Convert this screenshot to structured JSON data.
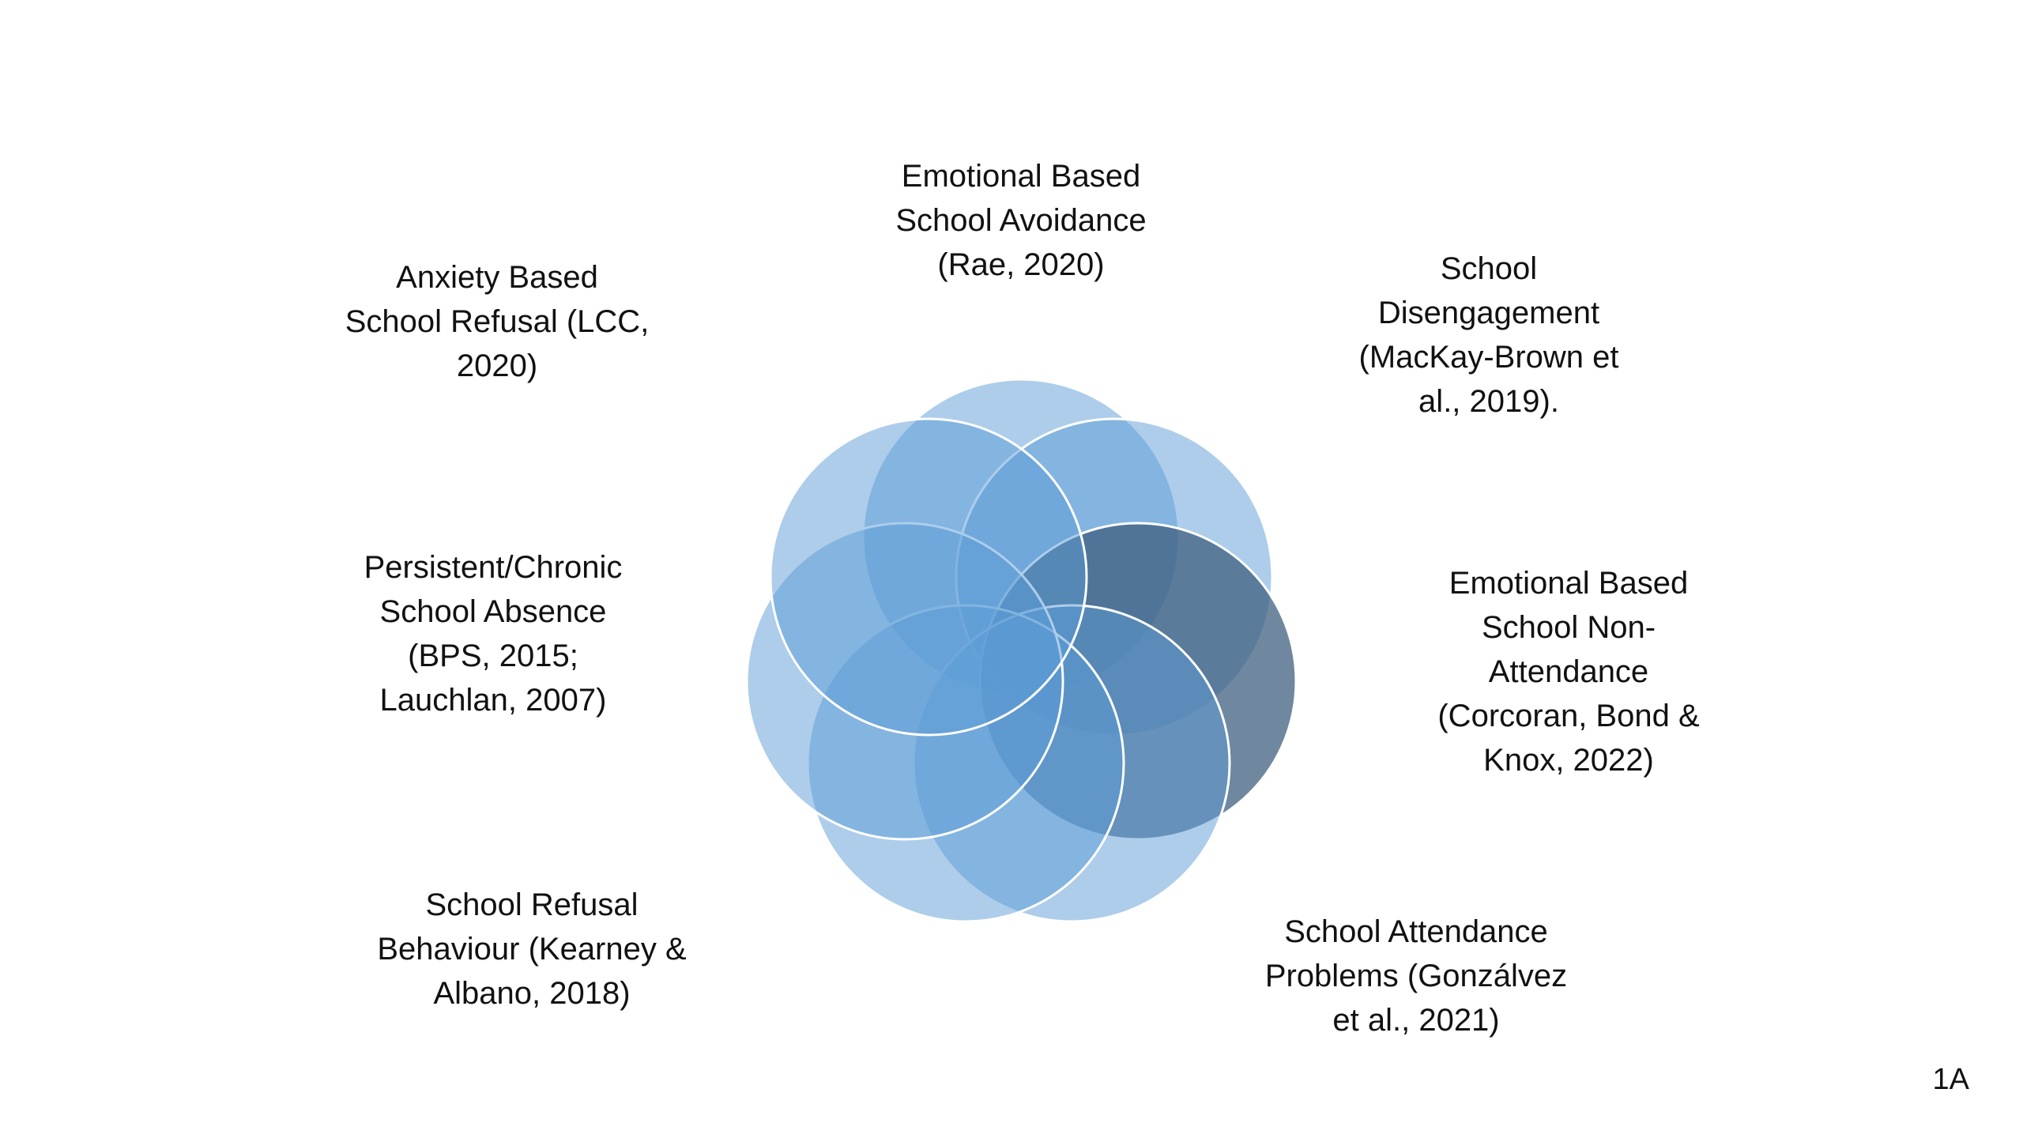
{
  "diagram": {
    "type": "overlapping-circles",
    "circles": [
      {
        "label_lines": [
          "Emotional Based",
          "School Avoidance",
          "(Rae, 2020)"
        ],
        "fill": "#5b9bd5",
        "opacity": 0.5
      },
      {
        "label_lines": [
          "School",
          "Disengagement",
          "(MacKay-Brown et",
          "al., 2019)."
        ],
        "fill": "#5b9bd5",
        "opacity": 0.5
      },
      {
        "label_lines": [
          "Emotional Based",
          "School Non-",
          "Attendance",
          "(Corcoran, Bond &",
          "Knox, 2022)"
        ],
        "fill": "#3f5f7f",
        "opacity": 0.75
      },
      {
        "label_lines": [
          "School Attendance",
          "Problems (Gonzálvez",
          "et al., 2021)"
        ],
        "fill": "#5b9bd5",
        "opacity": 0.5
      },
      {
        "label_lines": [
          "School Refusal",
          "Behaviour (Kearney &",
          "Albano, 2018)"
        ],
        "fill": "#5b9bd5",
        "opacity": 0.5
      },
      {
        "label_lines": [
          "Persistent/Chronic",
          "School Absence",
          "(BPS, 2015;",
          "Lauchlan, 2007)"
        ],
        "fill": "#5b9bd5",
        "opacity": 0.5
      },
      {
        "label_lines": [
          "Anxiety Based",
          "School Refusal (LCC,",
          "2020)"
        ],
        "fill": "#5b9bd5",
        "opacity": 0.5
      }
    ],
    "stroke_color": "#ffffff"
  },
  "slide_id": "1A"
}
